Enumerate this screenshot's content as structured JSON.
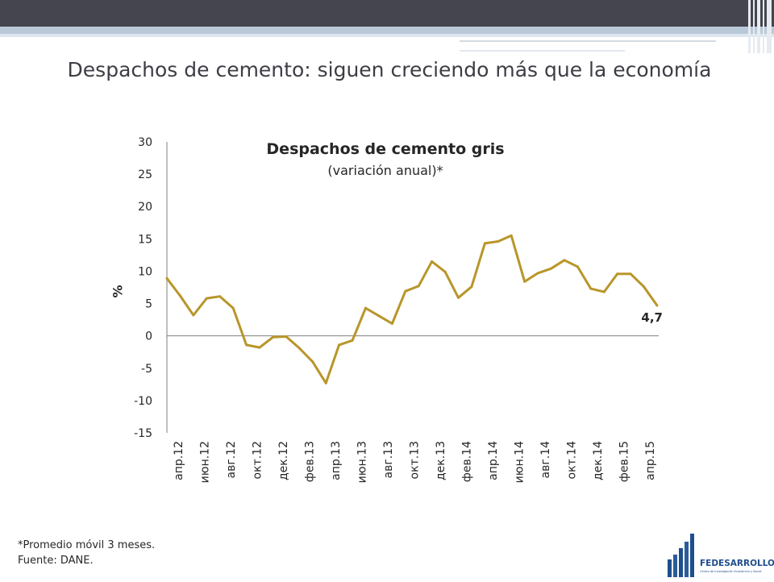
{
  "slide": {
    "title": "Despachos de cemento: siguen creciendo más que la economía"
  },
  "colors": {
    "line": "#B8962A",
    "axis": "#7f7f7f",
    "header": "#45454f",
    "logo": "#1f4e8c"
  },
  "chart_data": {
    "type": "line",
    "title": "Despachos de cemento gris",
    "subtitle": "(variación anual)*",
    "ylabel": "%",
    "ylim": [
      -15,
      30
    ],
    "yticks": [
      "30",
      "25",
      "20",
      "15",
      "10",
      "5",
      "0",
      "-5",
      "-10",
      "-15"
    ],
    "ytick_values": [
      30,
      25,
      20,
      15,
      10,
      5,
      0,
      -5,
      -10,
      -15
    ],
    "tick_labels": [
      "апр.12",
      "июн.12",
      "авг.12",
      "окт.12",
      "дек.12",
      "фев.13",
      "апр.13",
      "июн.13",
      "авг.13",
      "окт.13",
      "дек.13",
      "фев.14",
      "апр.14",
      "июн.14",
      "авг.14",
      "окт.14",
      "дек.14",
      "фев.15",
      "апр.15"
    ],
    "x": [
      "2012-03",
      "2012-04",
      "2012-05",
      "2012-06",
      "2012-07",
      "2012-08",
      "2012-09",
      "2012-10",
      "2012-11",
      "2012-12",
      "2013-01",
      "2013-02",
      "2013-03",
      "2013-04",
      "2013-05",
      "2013-06",
      "2013-07",
      "2013-08",
      "2013-09",
      "2013-10",
      "2013-11",
      "2013-12",
      "2014-01",
      "2014-02",
      "2014-03",
      "2014-04",
      "2014-05",
      "2014-06",
      "2014-07",
      "2014-08",
      "2014-09",
      "2014-10",
      "2014-11",
      "2014-12",
      "2015-01",
      "2015-02",
      "2015-03",
      "2015-04"
    ],
    "series": [
      {
        "values": [
          8.9,
          6.2,
          3.2,
          5.8,
          6.1,
          4.3,
          -1.4,
          -1.8,
          -0.2,
          -0.1,
          -1.9,
          -4.0,
          -7.3,
          -1.4,
          -0.7,
          4.3,
          3.1,
          1.9,
          6.9,
          7.7,
          11.5,
          9.9,
          5.9,
          7.6,
          14.3,
          14.6,
          15.5,
          8.4,
          9.7,
          10.4,
          11.7,
          10.7,
          7.3,
          6.8,
          9.6,
          9.6,
          7.6,
          4.7
        ]
      }
    ],
    "last_label": "4,7",
    "grid": false,
    "legend": "none"
  },
  "footnotes": [
    "*Promedio móvil 3 meses.",
    "Fuente: DANE."
  ],
  "logo": {
    "name": "FEDESARROLLO",
    "tagline": "Centro de Investigación Económica y Social"
  }
}
